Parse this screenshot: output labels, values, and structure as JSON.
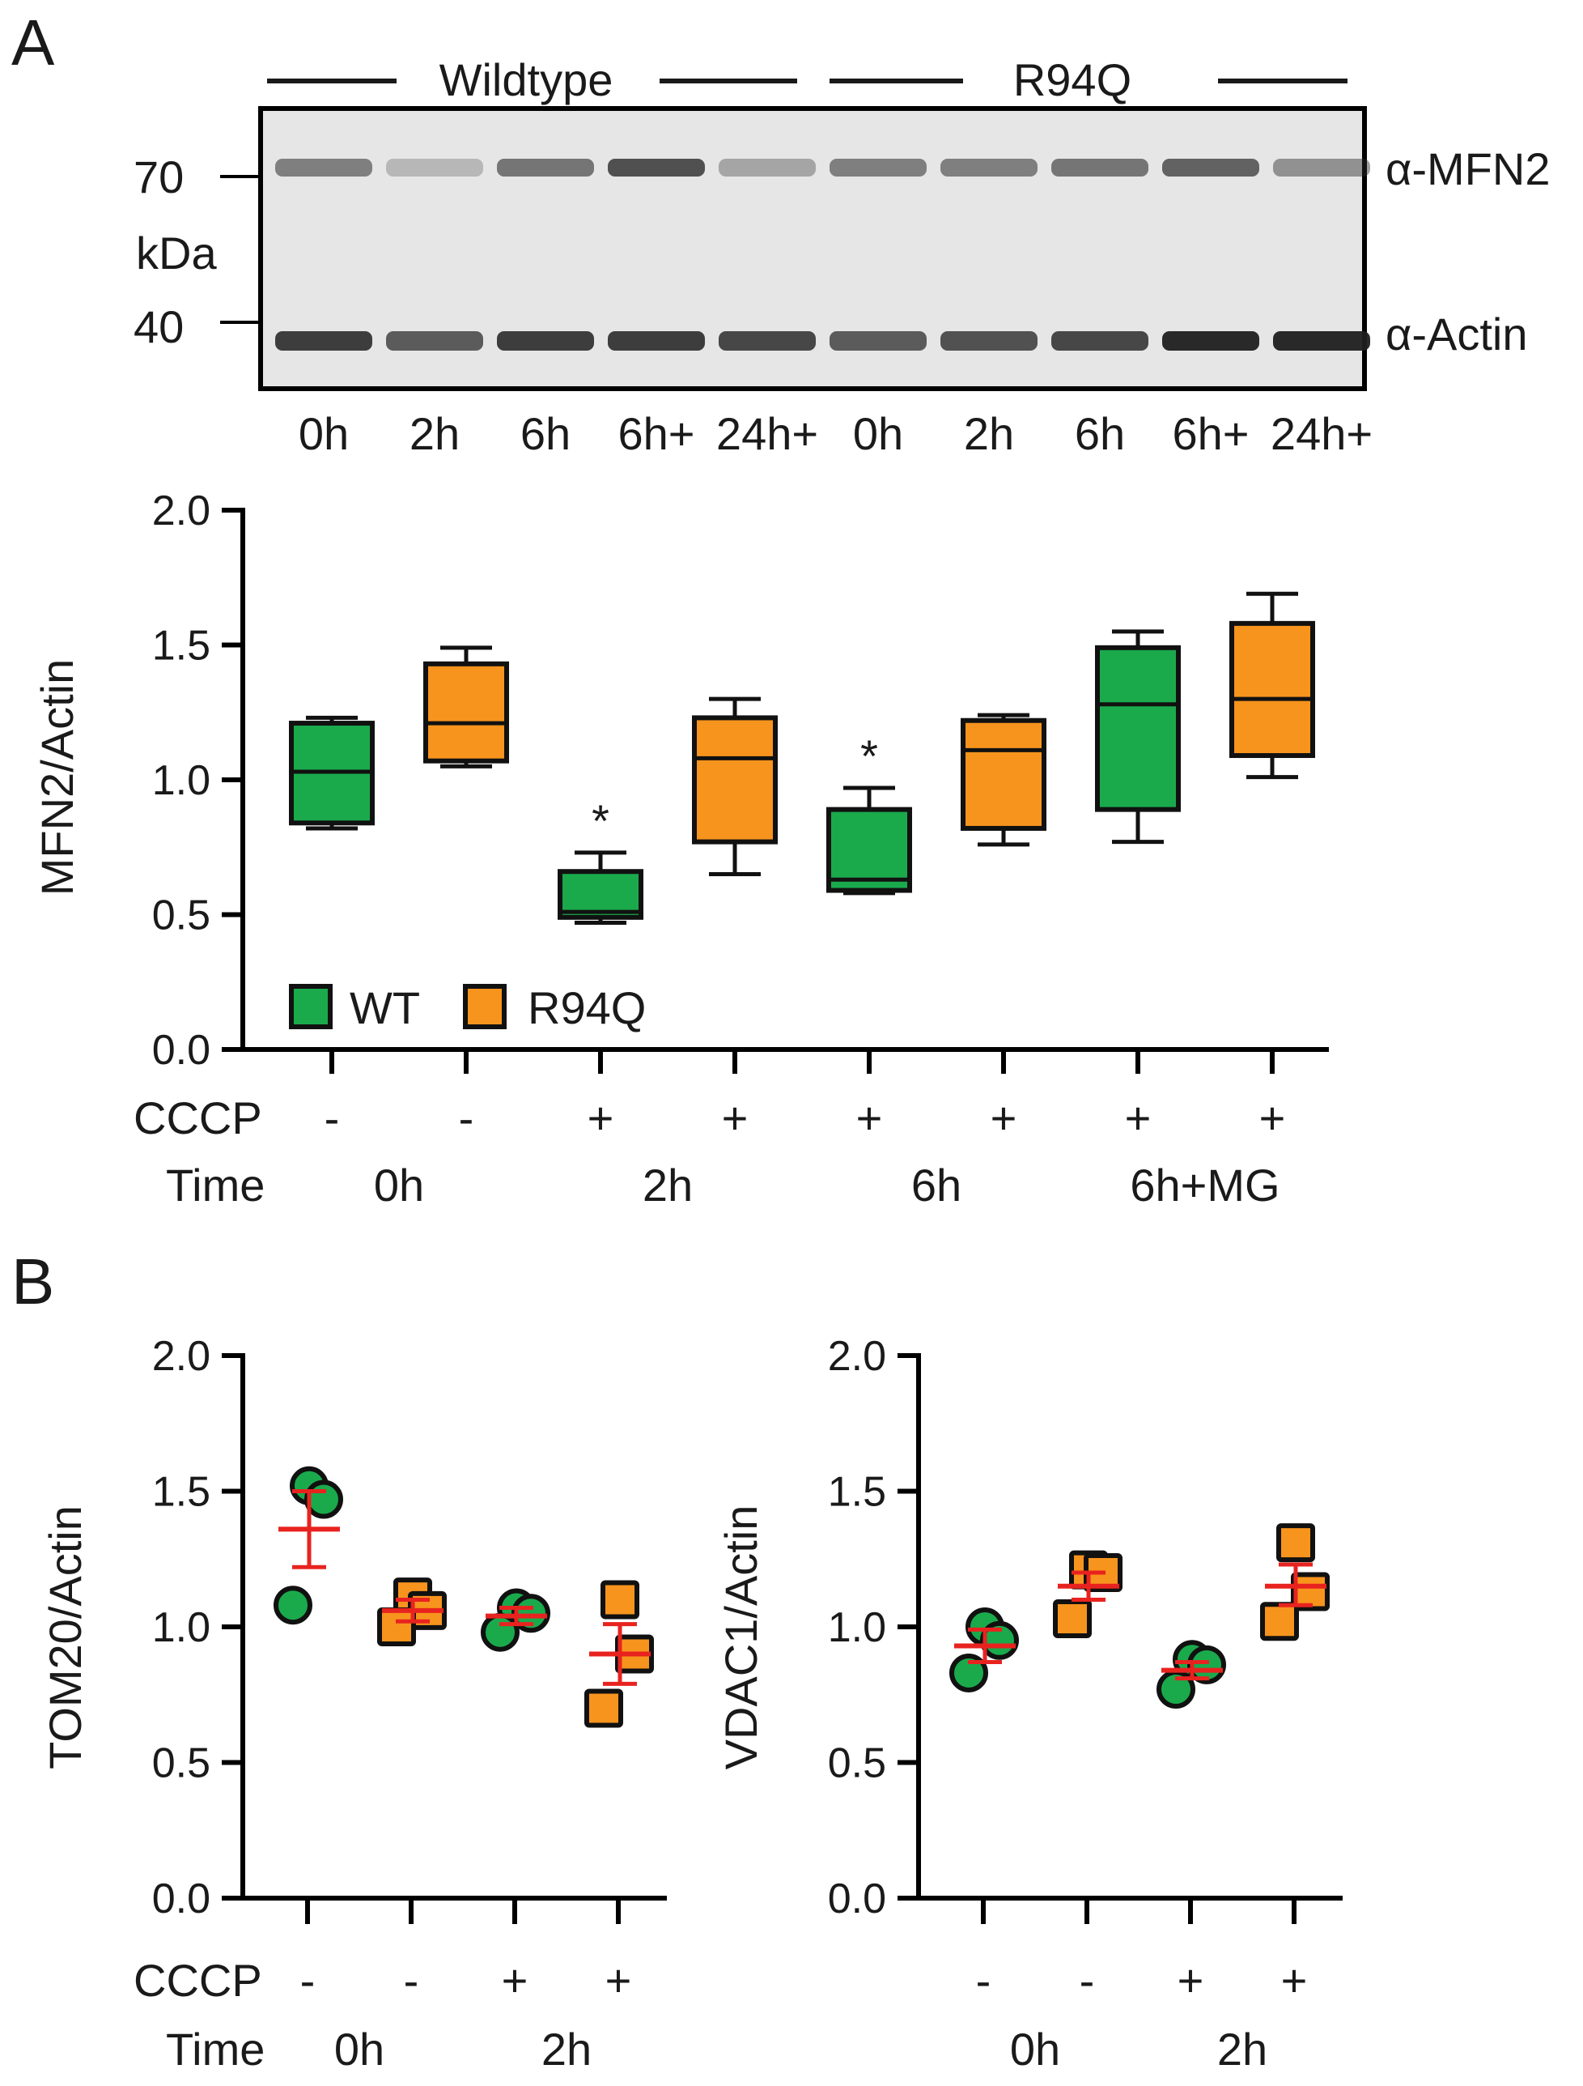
{
  "figure": {
    "panel_a_label": "A",
    "panel_b_label": "B"
  },
  "blot": {
    "group_labels": [
      "Wildtype",
      "R94Q"
    ],
    "markers": [
      "70",
      "kDa",
      "40"
    ],
    "antibodies": [
      "α-MFN2",
      "α-Actin"
    ],
    "lanes": [
      "0h",
      "2h",
      "6h",
      "6h+",
      "24h+",
      "0h",
      "2h",
      "6h",
      "6h+",
      "24h+"
    ],
    "mfn2_band_intensity": [
      0.55,
      0.25,
      0.6,
      0.8,
      0.35,
      0.55,
      0.55,
      0.6,
      0.7,
      0.45
    ],
    "actin_band_intensity": [
      0.85,
      0.7,
      0.85,
      0.85,
      0.8,
      0.7,
      0.75,
      0.8,
      0.95,
      0.95
    ]
  },
  "chart_data": [
    {
      "type": "box",
      "title": "",
      "ylabel": "MFN2/Actin",
      "ylim": [
        0,
        2.0
      ],
      "yticks": [
        "0.0",
        "0.5",
        "1.0",
        "1.5",
        "2.0"
      ],
      "legend": [
        {
          "name": "WT",
          "color": "#1aaa4c"
        },
        {
          "name": "R94Q",
          "color": "#f7941d"
        }
      ],
      "row_labels": {
        "cccp": "CCCP",
        "time": "Time"
      },
      "cccp": [
        "-",
        "-",
        "+",
        "+",
        "+",
        "+",
        "+",
        "+"
      ],
      "time_labels": [
        "0h",
        "2h",
        "6h",
        "6h+MG"
      ],
      "boxes": [
        {
          "group": "WT",
          "min": 0.82,
          "q1": 0.84,
          "median": 1.03,
          "q3": 1.21,
          "max": 1.23,
          "sig": ""
        },
        {
          "group": "R94Q",
          "min": 1.05,
          "q1": 1.07,
          "median": 1.21,
          "q3": 1.43,
          "max": 1.49,
          "sig": ""
        },
        {
          "group": "WT",
          "min": 0.47,
          "q1": 0.49,
          "median": 0.51,
          "q3": 0.66,
          "max": 0.73,
          "sig": "*"
        },
        {
          "group": "R94Q",
          "min": 0.65,
          "q1": 0.77,
          "median": 1.08,
          "q3": 1.23,
          "max": 1.3,
          "sig": ""
        },
        {
          "group": "WT",
          "min": 0.58,
          "q1": 0.59,
          "median": 0.63,
          "q3": 0.89,
          "max": 0.97,
          "sig": "*"
        },
        {
          "group": "R94Q",
          "min": 0.76,
          "q1": 0.82,
          "median": 1.11,
          "q3": 1.22,
          "max": 1.24,
          "sig": ""
        },
        {
          "group": "WT",
          "min": 0.77,
          "q1": 0.89,
          "median": 1.28,
          "q3": 1.49,
          "max": 1.55,
          "sig": ""
        },
        {
          "group": "R94Q",
          "min": 1.01,
          "q1": 1.09,
          "median": 1.3,
          "q3": 1.58,
          "max": 1.69,
          "sig": ""
        }
      ]
    },
    {
      "type": "scatter",
      "ylabel": "TOM20/Actin",
      "ylim": [
        0,
        2.0
      ],
      "yticks": [
        "0.0",
        "0.5",
        "1.0",
        "1.5",
        "2.0"
      ],
      "row_labels": {
        "cccp": "CCCP",
        "time": "Time"
      },
      "cccp": [
        "-",
        "-",
        "+",
        "+"
      ],
      "time_labels": [
        "0h",
        "2h"
      ],
      "groups": [
        {
          "group": "WT",
          "points": [
            1.52,
            1.47,
            1.08
          ],
          "mean": 1.36,
          "sem_low": 1.22,
          "sem_high": 1.5
        },
        {
          "group": "R94Q",
          "points": [
            1.11,
            1.06,
            1.0
          ],
          "mean": 1.06,
          "sem_low": 1.02,
          "sem_high": 1.1
        },
        {
          "group": "WT",
          "points": [
            1.07,
            1.05,
            0.98
          ],
          "mean": 1.04,
          "sem_low": 1.01,
          "sem_high": 1.07
        },
        {
          "group": "R94Q",
          "points": [
            1.1,
            0.9,
            0.7
          ],
          "mean": 0.9,
          "sem_low": 0.79,
          "sem_high": 1.01
        }
      ]
    },
    {
      "type": "scatter",
      "ylabel": "VDAC1/Actin",
      "ylim": [
        0,
        2.0
      ],
      "yticks": [
        "0.0",
        "0.5",
        "1.0",
        "1.5",
        "2.0"
      ],
      "cccp": [
        "-",
        "-",
        "+",
        "+"
      ],
      "time_labels": [
        "0h",
        "2h"
      ],
      "groups": [
        {
          "group": "WT",
          "points": [
            1.0,
            0.95,
            0.83
          ],
          "mean": 0.93,
          "sem_low": 0.87,
          "sem_high": 0.99
        },
        {
          "group": "R94Q",
          "points": [
            1.21,
            1.2,
            1.03
          ],
          "mean": 1.15,
          "sem_low": 1.1,
          "sem_high": 1.2
        },
        {
          "group": "WT",
          "points": [
            0.88,
            0.86,
            0.77
          ],
          "mean": 0.84,
          "sem_low": 0.81,
          "sem_high": 0.87
        },
        {
          "group": "R94Q",
          "points": [
            1.31,
            1.13,
            1.02
          ],
          "mean": 1.15,
          "sem_low": 1.08,
          "sem_high": 1.23
        }
      ]
    }
  ]
}
